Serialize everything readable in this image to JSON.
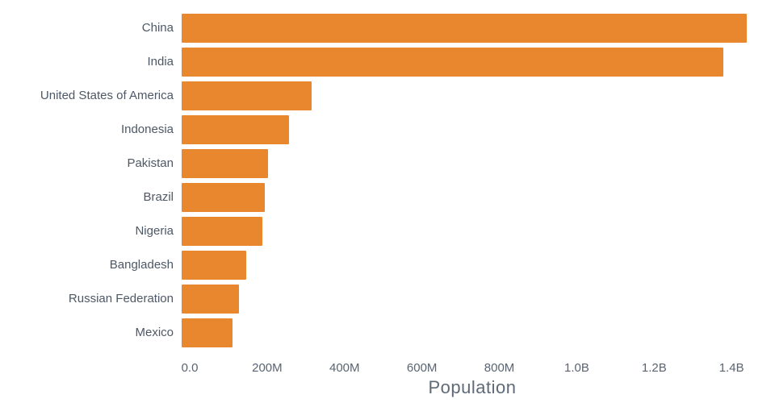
{
  "chart_data": {
    "type": "bar",
    "orientation": "horizontal",
    "title": "",
    "xlabel": "Population",
    "ylabel": "",
    "bar_color": "#E8872D",
    "xlim": [
      0,
      1460000000
    ],
    "grid": false,
    "legend": false,
    "categories": [
      "China",
      "India",
      "United States of America",
      "Indonesia",
      "Pakistan",
      "Brazil",
      "Nigeria",
      "Bangladesh",
      "Russian Federation",
      "Mexico"
    ],
    "values": [
      1439000000,
      1380000000,
      331000000,
      273500000,
      220900000,
      212600000,
      206100000,
      164700000,
      145900000,
      128900000
    ],
    "ticks": [
      {
        "label": "0.0",
        "value": 0
      },
      {
        "label": "200M",
        "value": 200000000
      },
      {
        "label": "400M",
        "value": 400000000
      },
      {
        "label": "600M",
        "value": 600000000
      },
      {
        "label": "800M",
        "value": 800000000
      },
      {
        "label": "1.0B",
        "value": 1000000000
      },
      {
        "label": "1.2B",
        "value": 1200000000
      },
      {
        "label": "1.4B",
        "value": 1400000000
      }
    ]
  }
}
